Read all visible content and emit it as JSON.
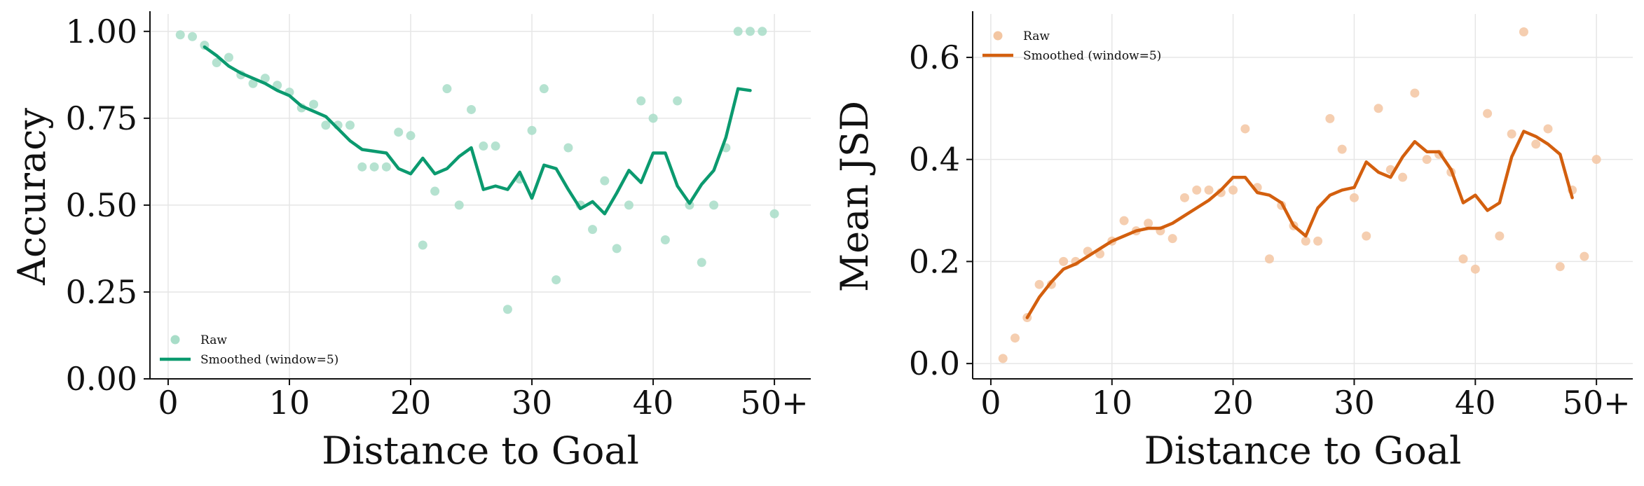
{
  "chart_data": [
    {
      "type": "scatter",
      "title": "",
      "xlabel": "Distance to Goal",
      "ylabel": "Accuracy",
      "xlim": [
        -1.5,
        53
      ],
      "ylim": [
        0,
        1.05
      ],
      "grid": true,
      "legend_position": "lower-left",
      "xticks": [
        0,
        10,
        20,
        30,
        40,
        50
      ],
      "xtick_labels": [
        "0",
        "10",
        "20",
        "30",
        "40",
        "50+"
      ],
      "yticks": [
        0,
        0.25,
        0.5,
        0.75,
        1.0
      ],
      "ytick_labels": [
        "0.00",
        "0.25",
        "0.50",
        "0.75",
        "1.00"
      ],
      "colors": {
        "raw": "#a8ddc8",
        "smoothed": "#0b9a6f"
      },
      "series": [
        {
          "name": "Raw",
          "kind": "scatter",
          "x": [
            1,
            2,
            3,
            4,
            5,
            6,
            7,
            8,
            9,
            10,
            11,
            12,
            13,
            14,
            15,
            16,
            17,
            18,
            19,
            20,
            21,
            22,
            23,
            24,
            25,
            26,
            27,
            28,
            29,
            30,
            31,
            32,
            33,
            34,
            35,
            36,
            37,
            38,
            39,
            40,
            41,
            42,
            43,
            44,
            45,
            46,
            47,
            48,
            49,
            50
          ],
          "y": [
            0.99,
            0.985,
            0.96,
            0.91,
            0.925,
            0.875,
            0.85,
            0.865,
            0.845,
            0.825,
            0.78,
            0.79,
            0.73,
            0.73,
            0.73,
            0.61,
            0.61,
            0.61,
            0.71,
            0.7,
            0.385,
            0.54,
            0.835,
            0.5,
            0.775,
            0.67,
            0.67,
            0.2,
            0.575,
            0.715,
            0.835,
            0.285,
            0.665,
            0.5,
            0.43,
            0.57,
            0.375,
            0.5,
            0.8,
            0.75,
            0.4,
            0.8,
            0.5,
            0.335,
            0.5,
            0.665,
            1.0,
            1.0,
            1.0,
            0.475
          ]
        },
        {
          "name": "Smoothed (window=5)",
          "kind": "line",
          "x": [
            3,
            4,
            5,
            6,
            7,
            8,
            9,
            10,
            11,
            12,
            13,
            14,
            15,
            16,
            17,
            18,
            19,
            20,
            21,
            22,
            23,
            24,
            25,
            26,
            27,
            28,
            29,
            30,
            31,
            32,
            33,
            34,
            35,
            36,
            37,
            38,
            39,
            40,
            41,
            42,
            43,
            44,
            45,
            46,
            47,
            48
          ],
          "y": [
            0.955,
            0.93,
            0.9,
            0.88,
            0.865,
            0.85,
            0.83,
            0.815,
            0.785,
            0.77,
            0.755,
            0.72,
            0.685,
            0.66,
            0.655,
            0.65,
            0.605,
            0.59,
            0.635,
            0.59,
            0.605,
            0.64,
            0.665,
            0.545,
            0.555,
            0.545,
            0.595,
            0.52,
            0.615,
            0.605,
            0.545,
            0.49,
            0.51,
            0.475,
            0.535,
            0.6,
            0.565,
            0.65,
            0.65,
            0.555,
            0.505,
            0.56,
            0.6,
            0.695,
            0.835,
            0.83
          ]
        }
      ]
    },
    {
      "type": "scatter",
      "title": "",
      "xlabel": "Distance to Goal",
      "ylabel": "Mean JSD",
      "xlim": [
        -1.5,
        53
      ],
      "ylim": [
        -0.03,
        0.685
      ],
      "grid": true,
      "legend_position": "upper-left",
      "xticks": [
        0,
        10,
        20,
        30,
        40,
        50
      ],
      "xtick_labels": [
        "0",
        "10",
        "20",
        "30",
        "40",
        "50+"
      ],
      "yticks": [
        0,
        0.2,
        0.4,
        0.6
      ],
      "ytick_labels": [
        "0.0",
        "0.2",
        "0.4",
        "0.6"
      ],
      "colors": {
        "raw": "#f3c6a2",
        "smoothed": "#d35f0e"
      },
      "series": [
        {
          "name": "Raw",
          "kind": "scatter",
          "x": [
            1,
            2,
            3,
            4,
            5,
            6,
            7,
            8,
            9,
            10,
            11,
            12,
            13,
            14,
            15,
            16,
            17,
            18,
            19,
            20,
            21,
            22,
            23,
            24,
            25,
            26,
            27,
            28,
            29,
            30,
            31,
            32,
            33,
            34,
            35,
            36,
            37,
            38,
            39,
            40,
            41,
            42,
            43,
            44,
            45,
            46,
            47,
            48,
            49,
            50
          ],
          "y": [
            0.01,
            0.05,
            0.09,
            0.155,
            0.155,
            0.2,
            0.2,
            0.22,
            0.215,
            0.24,
            0.28,
            0.26,
            0.275,
            0.26,
            0.245,
            0.325,
            0.34,
            0.34,
            0.335,
            0.34,
            0.46,
            0.345,
            0.205,
            0.31,
            0.27,
            0.24,
            0.24,
            0.48,
            0.42,
            0.325,
            0.25,
            0.5,
            0.38,
            0.365,
            0.53,
            0.4,
            0.41,
            0.375,
            0.205,
            0.185,
            0.49,
            0.25,
            0.45,
            0.65,
            0.43,
            0.46,
            0.19,
            0.34,
            0.21,
            0.4
          ]
        },
        {
          "name": "Smoothed (window=5)",
          "kind": "line",
          "x": [
            3,
            4,
            5,
            6,
            7,
            8,
            9,
            10,
            11,
            12,
            13,
            14,
            15,
            16,
            17,
            18,
            19,
            20,
            21,
            22,
            23,
            24,
            25,
            26,
            27,
            28,
            29,
            30,
            31,
            32,
            33,
            34,
            35,
            36,
            37,
            38,
            39,
            40,
            41,
            42,
            43,
            44,
            45,
            46,
            47,
            48
          ],
          "y": [
            0.09,
            0.13,
            0.16,
            0.185,
            0.195,
            0.21,
            0.225,
            0.24,
            0.25,
            0.26,
            0.265,
            0.265,
            0.275,
            0.29,
            0.305,
            0.32,
            0.34,
            0.365,
            0.365,
            0.335,
            0.33,
            0.315,
            0.27,
            0.25,
            0.305,
            0.33,
            0.34,
            0.345,
            0.395,
            0.375,
            0.365,
            0.405,
            0.435,
            0.415,
            0.415,
            0.38,
            0.315,
            0.33,
            0.3,
            0.315,
            0.405,
            0.455,
            0.445,
            0.43,
            0.41,
            0.325
          ]
        }
      ]
    }
  ]
}
